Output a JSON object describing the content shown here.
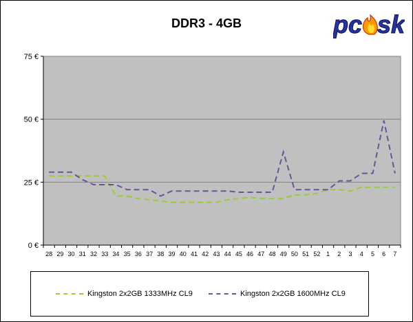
{
  "chart_data": {
    "type": "line",
    "title": "DDR3 - 4GB",
    "xlabel": "",
    "ylabel": "",
    "ylim": [
      0,
      75
    ],
    "yticks": [
      "0 €",
      "25 €",
      "50 €",
      "75 €"
    ],
    "grid": true,
    "legend_position": "bottom",
    "categories": [
      "28",
      "29",
      "30",
      "31",
      "32",
      "33",
      "34",
      "35",
      "36",
      "37",
      "38",
      "39",
      "40",
      "41",
      "42",
      "43",
      "44",
      "45",
      "46",
      "47",
      "48",
      "49",
      "50",
      "51",
      "52",
      "1",
      "2",
      "3",
      "4",
      "5",
      "6",
      "7"
    ],
    "series": [
      {
        "name": "Kingston 2x2GB 1333MHz CL9",
        "color": "#99cc33",
        "values": [
          27.5,
          27.5,
          27.5,
          27.5,
          27.5,
          27.5,
          19.5,
          19.5,
          18.5,
          18,
          17.5,
          17,
          17,
          17,
          17,
          17,
          18,
          18.5,
          19,
          18.5,
          18.5,
          18.5,
          20,
          20,
          20.5,
          22,
          22,
          21.5,
          23,
          23,
          23,
          23
        ]
      },
      {
        "name": "Kingston 2x2GB 1600MHz CL9",
        "color": "#665599",
        "values": [
          29,
          29,
          29,
          26,
          24,
          24,
          24,
          22,
          22,
          22,
          19.5,
          21.5,
          21.5,
          21.5,
          21.5,
          21.5,
          21.5,
          21,
          21,
          21,
          21,
          37,
          22,
          22,
          22,
          22,
          25.5,
          25.5,
          28.5,
          28.5,
          49.5,
          28.5
        ]
      }
    ]
  },
  "logo": {
    "text": "pcsk",
    "icon": "flame-icon"
  }
}
